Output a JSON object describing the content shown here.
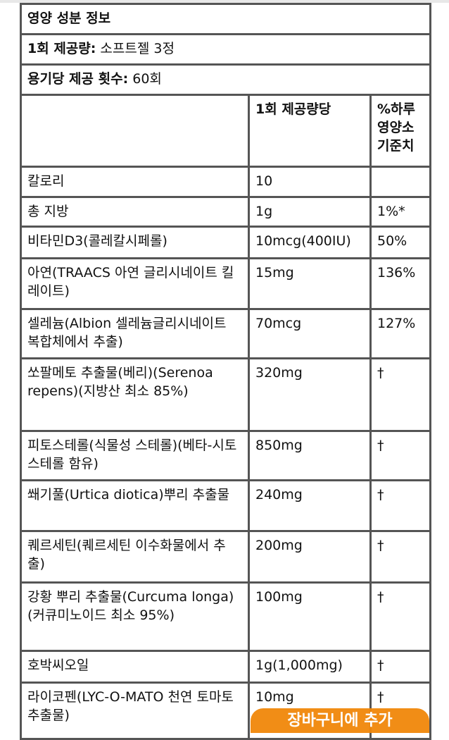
{
  "title": "영양 성분 정보",
  "serving_size": {
    "label": "1회 제공량:",
    "value": "소프트젤 3정"
  },
  "servings_per_container": {
    "label": "용기당 제공 횟수:",
    "value": "60회"
  },
  "columns": [
    "",
    "1회 제공량당",
    "%하루 영양소 기준치"
  ],
  "rows": [
    {
      "name": "칼로리",
      "amount": "10",
      "dv": ""
    },
    {
      "name": "총 지방",
      "amount": "1g",
      "dv": "1%*"
    },
    {
      "name": "비타민D3(콜레칼시페롤)",
      "amount": "10mcg(400IU)",
      "dv": "50%"
    },
    {
      "name": "아연(TRAACS 아연 글리시네이트 킬레이트)",
      "amount": "15mg",
      "dv": "136%"
    },
    {
      "name": "셀레늄(Albion 셀레늄글리시네이트 복합체에서 추출)",
      "amount": "70mcg",
      "dv": "127%"
    },
    {
      "name": "쏘팔메토 추출물(베리)(Serenoa repens)(지방산 최소 85%)",
      "amount": "320mg",
      "dv": "†"
    },
    {
      "name": "피토스테롤(식물성 스테롤)(베타-시토스테롤 함유)",
      "amount": "850mg",
      "dv": "†"
    },
    {
      "name": "쐐기풀(Urtica diotica)뿌리 추출물",
      "amount": "240mg",
      "dv": "†"
    },
    {
      "name": "퀘르세틴(퀘르세틴 이수화물에서 추출)",
      "amount": "200mg",
      "dv": "†"
    },
    {
      "name": "강황 뿌리 추출물(Curcuma longa)(커큐미노이드 최소 95%)",
      "amount": "100mg",
      "dv": "†"
    },
    {
      "name": "호박씨오일",
      "amount": "1g(1,000mg)",
      "dv": "†"
    },
    {
      "name": "라이코펜(LYC-O-MATO 천연 토마토 추출물)",
      "amount": "10mg",
      "dv": "†"
    }
  ],
  "add_to_cart": "장바구니에 추가",
  "colors": {
    "button": "#f0870a",
    "border": "#555555"
  }
}
